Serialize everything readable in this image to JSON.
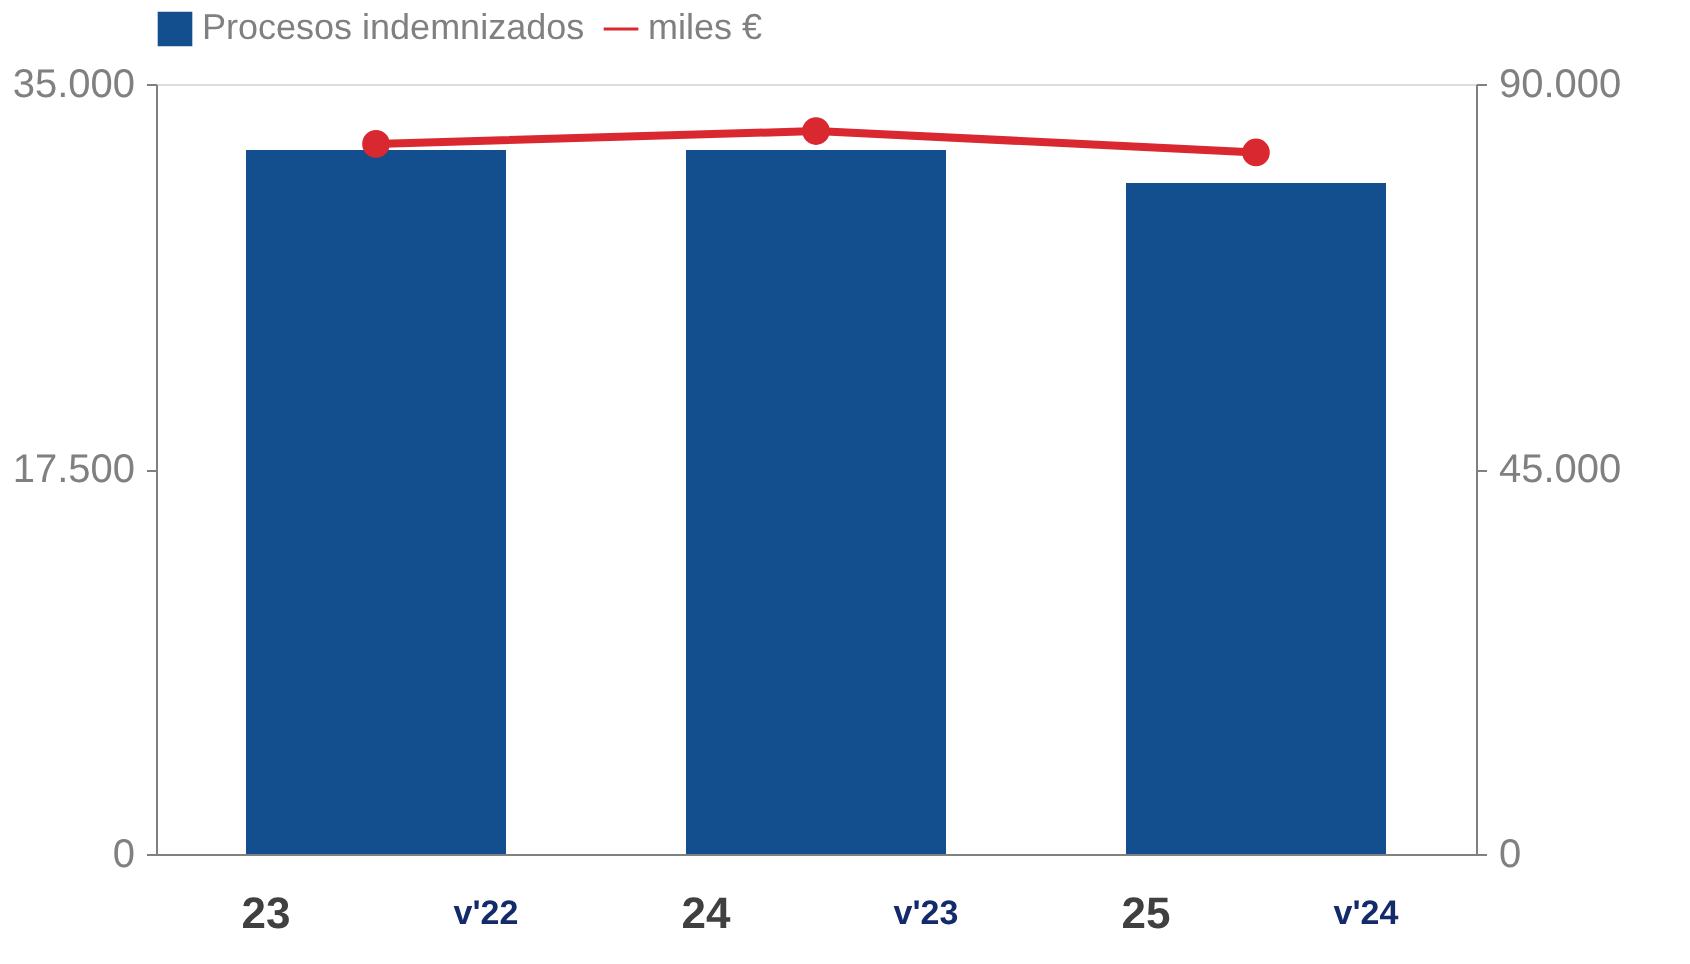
{
  "chart_data": {
    "type": "bar",
    "categories": [
      "23",
      "24",
      "25"
    ],
    "series": [
      {
        "name": "Procesos indemnizados",
        "color": "#134f8f",
        "values": [
          32000,
          32000,
          30500
        ]
      },
      {
        "name": "miles €",
        "type": "line",
        "axis": "y2",
        "color": "#d9282f",
        "marker": "circle",
        "line_style": "solid",
        "values": [
          83000,
          84500,
          82000
        ]
      }
    ],
    "ylim": [
      0,
      35000
    ],
    "yticks": [
      {
        "value": 0,
        "label": "0"
      },
      {
        "value": 17500,
        "label": "17.500"
      },
      {
        "value": 35000,
        "label": "35.000"
      }
    ],
    "y2lim": [
      0,
      90000
    ],
    "y2ticks": [
      {
        "value": 0,
        "label": "0"
      },
      {
        "value": 45000,
        "label": "45.000"
      },
      {
        "value": 90000,
        "label": "90.000"
      }
    ],
    "annotations": [
      "v'22",
      "v'23",
      "v'24"
    ],
    "legend": "top",
    "grid": false
  }
}
